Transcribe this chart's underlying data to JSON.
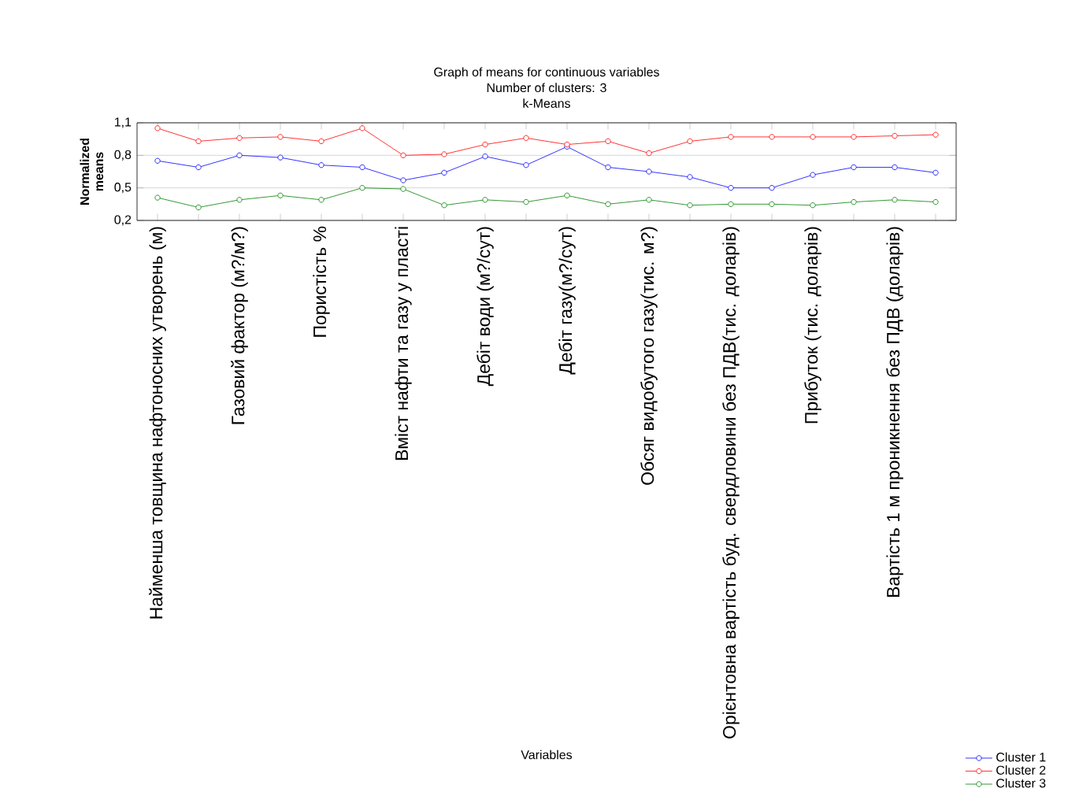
{
  "chart_data": {
    "type": "line",
    "title": "Graph of means for continuous variables",
    "subtitle": "Number of clusters: 3",
    "annotations": [
      "k-Means"
    ],
    "xlabel": "Variables",
    "ylabel": "Normalized means",
    "categories": [
      "Найменша товщина нафтоносних утворень (м)",
      null,
      "Газовий фактор (м?/м?)",
      null,
      "Пористість %",
      null,
      "Вміст нафти та газу у пласті",
      null,
      "Дебіт води (м?/сут)",
      null,
      "Дебіт газу(м?/сут)",
      null,
      "Обсяг видобутого газу(тис. м?)",
      null,
      "Орієнтовна вартість буд. свердловини без ПДВ(тис. доларів)",
      null,
      "Прибуток (тис. доларів)",
      null,
      "Вартість 1 м проникнення без ПДВ (доларів)",
      null
    ],
    "series": [
      {
        "name": "Cluster 1",
        "color": "#0000ff",
        "values": [
          0.75,
          0.69,
          0.8,
          0.78,
          0.71,
          0.69,
          0.57,
          0.64,
          0.79,
          0.71,
          0.88,
          0.69,
          0.65,
          0.6,
          0.5,
          0.5,
          0.62,
          0.69,
          0.69,
          0.64
        ]
      },
      {
        "name": "Cluster 2",
        "color": "#ff0000",
        "values": [
          1.05,
          0.93,
          0.96,
          0.97,
          0.93,
          1.05,
          0.8,
          0.81,
          0.9,
          0.96,
          0.9,
          0.93,
          0.82,
          0.93,
          0.97,
          0.97,
          0.97,
          0.97,
          0.98,
          0.99
        ]
      },
      {
        "name": "Cluster 3",
        "color": "#008000",
        "values": [
          0.41,
          0.32,
          0.39,
          0.43,
          0.39,
          0.5,
          0.49,
          0.34,
          0.39,
          0.37,
          0.43,
          0.35,
          0.39,
          0.34,
          0.35,
          0.35,
          0.34,
          0.37,
          0.39,
          0.37
        ]
      }
    ],
    "ylim": [
      0.2,
      1.1
    ],
    "yticks": [
      {
        "value": 0.2,
        "label": "0,2"
      },
      {
        "value": 0.5,
        "label": "0,5"
      },
      {
        "value": 0.8,
        "label": "0,8"
      },
      {
        "value": 1.1,
        "label": "1,1"
      }
    ],
    "grid": "y",
    "legend": "bottom right",
    "marker": "circle",
    "line_style": "solid"
  }
}
